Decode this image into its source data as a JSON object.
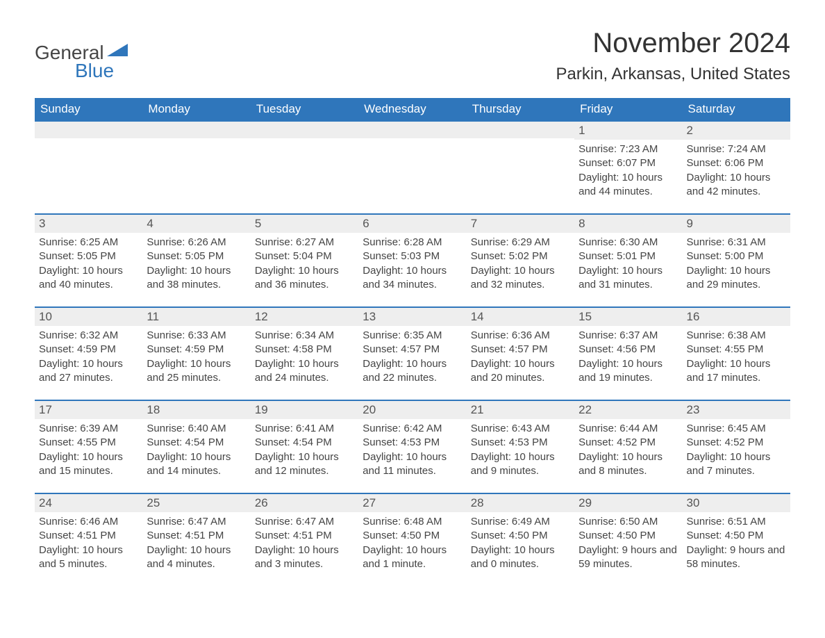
{
  "brand": {
    "word1": "General",
    "word2": "Blue"
  },
  "title": "November 2024",
  "location": "Parkin, Arkansas, United States",
  "colors": {
    "header_bg": "#2f76bb",
    "header_text": "#ffffff",
    "daynum_bg": "#eeeeee",
    "border_top": "#2f76bb",
    "body_text": "#444444",
    "page_bg": "#ffffff"
  },
  "weekday_headers": [
    "Sunday",
    "Monday",
    "Tuesday",
    "Wednesday",
    "Thursday",
    "Friday",
    "Saturday"
  ],
  "weeks": [
    [
      null,
      null,
      null,
      null,
      null,
      {
        "d": "1",
        "sr": "7:23 AM",
        "ss": "6:07 PM",
        "dl": "10 hours and 44 minutes."
      },
      {
        "d": "2",
        "sr": "7:24 AM",
        "ss": "6:06 PM",
        "dl": "10 hours and 42 minutes."
      }
    ],
    [
      {
        "d": "3",
        "sr": "6:25 AM",
        "ss": "5:05 PM",
        "dl": "10 hours and 40 minutes."
      },
      {
        "d": "4",
        "sr": "6:26 AM",
        "ss": "5:05 PM",
        "dl": "10 hours and 38 minutes."
      },
      {
        "d": "5",
        "sr": "6:27 AM",
        "ss": "5:04 PM",
        "dl": "10 hours and 36 minutes."
      },
      {
        "d": "6",
        "sr": "6:28 AM",
        "ss": "5:03 PM",
        "dl": "10 hours and 34 minutes."
      },
      {
        "d": "7",
        "sr": "6:29 AM",
        "ss": "5:02 PM",
        "dl": "10 hours and 32 minutes."
      },
      {
        "d": "8",
        "sr": "6:30 AM",
        "ss": "5:01 PM",
        "dl": "10 hours and 31 minutes."
      },
      {
        "d": "9",
        "sr": "6:31 AM",
        "ss": "5:00 PM",
        "dl": "10 hours and 29 minutes."
      }
    ],
    [
      {
        "d": "10",
        "sr": "6:32 AM",
        "ss": "4:59 PM",
        "dl": "10 hours and 27 minutes."
      },
      {
        "d": "11",
        "sr": "6:33 AM",
        "ss": "4:59 PM",
        "dl": "10 hours and 25 minutes."
      },
      {
        "d": "12",
        "sr": "6:34 AM",
        "ss": "4:58 PM",
        "dl": "10 hours and 24 minutes."
      },
      {
        "d": "13",
        "sr": "6:35 AM",
        "ss": "4:57 PM",
        "dl": "10 hours and 22 minutes."
      },
      {
        "d": "14",
        "sr": "6:36 AM",
        "ss": "4:57 PM",
        "dl": "10 hours and 20 minutes."
      },
      {
        "d": "15",
        "sr": "6:37 AM",
        "ss": "4:56 PM",
        "dl": "10 hours and 19 minutes."
      },
      {
        "d": "16",
        "sr": "6:38 AM",
        "ss": "4:55 PM",
        "dl": "10 hours and 17 minutes."
      }
    ],
    [
      {
        "d": "17",
        "sr": "6:39 AM",
        "ss": "4:55 PM",
        "dl": "10 hours and 15 minutes."
      },
      {
        "d": "18",
        "sr": "6:40 AM",
        "ss": "4:54 PM",
        "dl": "10 hours and 14 minutes."
      },
      {
        "d": "19",
        "sr": "6:41 AM",
        "ss": "4:54 PM",
        "dl": "10 hours and 12 minutes."
      },
      {
        "d": "20",
        "sr": "6:42 AM",
        "ss": "4:53 PM",
        "dl": "10 hours and 11 minutes."
      },
      {
        "d": "21",
        "sr": "6:43 AM",
        "ss": "4:53 PM",
        "dl": "10 hours and 9 minutes."
      },
      {
        "d": "22",
        "sr": "6:44 AM",
        "ss": "4:52 PM",
        "dl": "10 hours and 8 minutes."
      },
      {
        "d": "23",
        "sr": "6:45 AM",
        "ss": "4:52 PM",
        "dl": "10 hours and 7 minutes."
      }
    ],
    [
      {
        "d": "24",
        "sr": "6:46 AM",
        "ss": "4:51 PM",
        "dl": "10 hours and 5 minutes."
      },
      {
        "d": "25",
        "sr": "6:47 AM",
        "ss": "4:51 PM",
        "dl": "10 hours and 4 minutes."
      },
      {
        "d": "26",
        "sr": "6:47 AM",
        "ss": "4:51 PM",
        "dl": "10 hours and 3 minutes."
      },
      {
        "d": "27",
        "sr": "6:48 AM",
        "ss": "4:50 PM",
        "dl": "10 hours and 1 minute."
      },
      {
        "d": "28",
        "sr": "6:49 AM",
        "ss": "4:50 PM",
        "dl": "10 hours and 0 minutes."
      },
      {
        "d": "29",
        "sr": "6:50 AM",
        "ss": "4:50 PM",
        "dl": "9 hours and 59 minutes."
      },
      {
        "d": "30",
        "sr": "6:51 AM",
        "ss": "4:50 PM",
        "dl": "9 hours and 58 minutes."
      }
    ]
  ],
  "labels": {
    "sunrise": "Sunrise:",
    "sunset": "Sunset:",
    "daylight": "Daylight:"
  }
}
